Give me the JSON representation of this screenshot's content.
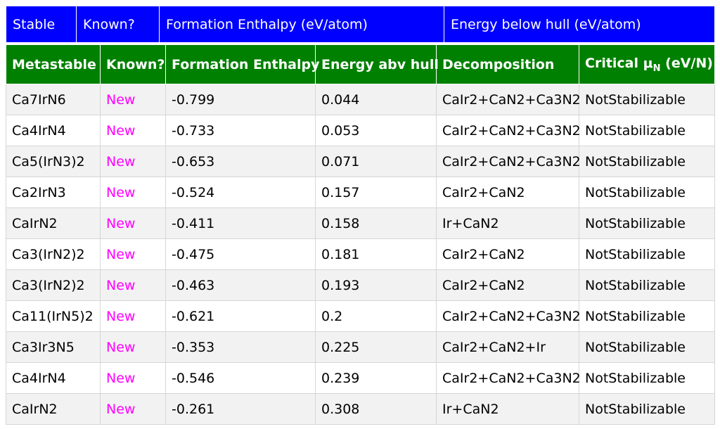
{
  "stable_header": {
    "stable": "Stable",
    "known": "Known?",
    "formation": "Formation Enthalpy (eV/atom)",
    "below_hull": "Energy below hull (eV/atom)"
  },
  "meta_header": {
    "metastable": "Metastable",
    "known": "Known?",
    "formation": "Formation Enthalpy",
    "above_hull": "Energy abv hull",
    "decomposition": "Decomposition",
    "critical_prefix": "Critical μ",
    "critical_sub": "N",
    "critical_suffix": " (eV/N)"
  },
  "rows": [
    {
      "formula": "Ca7IrN6",
      "known": "New",
      "formation": "-0.799",
      "above_hull": "0.044",
      "decomposition": "CaIr2+CaN2+Ca3N2",
      "critical": "NotStabilizable"
    },
    {
      "formula": "Ca4IrN4",
      "known": "New",
      "formation": "-0.733",
      "above_hull": "0.053",
      "decomposition": "CaIr2+CaN2+Ca3N2",
      "critical": "NotStabilizable"
    },
    {
      "formula": "Ca5(IrN3)2",
      "known": "New",
      "formation": "-0.653",
      "above_hull": "0.071",
      "decomposition": "CaIr2+CaN2+Ca3N2",
      "critical": "NotStabilizable"
    },
    {
      "formula": "Ca2IrN3",
      "known": "New",
      "formation": "-0.524",
      "above_hull": "0.157",
      "decomposition": "CaIr2+CaN2",
      "critical": "NotStabilizable"
    },
    {
      "formula": "CaIrN2",
      "known": "New",
      "formation": "-0.411",
      "above_hull": "0.158",
      "decomposition": "Ir+CaN2",
      "critical": "NotStabilizable"
    },
    {
      "formula": "Ca3(IrN2)2",
      "known": "New",
      "formation": "-0.475",
      "above_hull": "0.181",
      "decomposition": "CaIr2+CaN2",
      "critical": "NotStabilizable"
    },
    {
      "formula": "Ca3(IrN2)2",
      "known": "New",
      "formation": "-0.463",
      "above_hull": "0.193",
      "decomposition": "CaIr2+CaN2",
      "critical": "NotStabilizable"
    },
    {
      "formula": "Ca11(IrN5)2",
      "known": "New",
      "formation": "-0.621",
      "above_hull": "0.2",
      "decomposition": "CaIr2+CaN2+Ca3N2",
      "critical": "NotStabilizable"
    },
    {
      "formula": "Ca3Ir3N5",
      "known": "New",
      "formation": "-0.353",
      "above_hull": "0.225",
      "decomposition": "CaIr2+CaN2+Ir",
      "critical": "NotStabilizable"
    },
    {
      "formula": "Ca4IrN4",
      "known": "New",
      "formation": "-0.546",
      "above_hull": "0.239",
      "decomposition": "CaIr2+CaN2+Ca3N2",
      "critical": "NotStabilizable"
    },
    {
      "formula": "CaIrN2",
      "known": "New",
      "formation": "-0.261",
      "above_hull": "0.308",
      "decomposition": "Ir+CaN2",
      "critical": "NotStabilizable"
    }
  ],
  "colors": {
    "stable_header_bg": "#0000ff",
    "meta_header_bg": "#008000",
    "new_text": "#ff00ff"
  }
}
